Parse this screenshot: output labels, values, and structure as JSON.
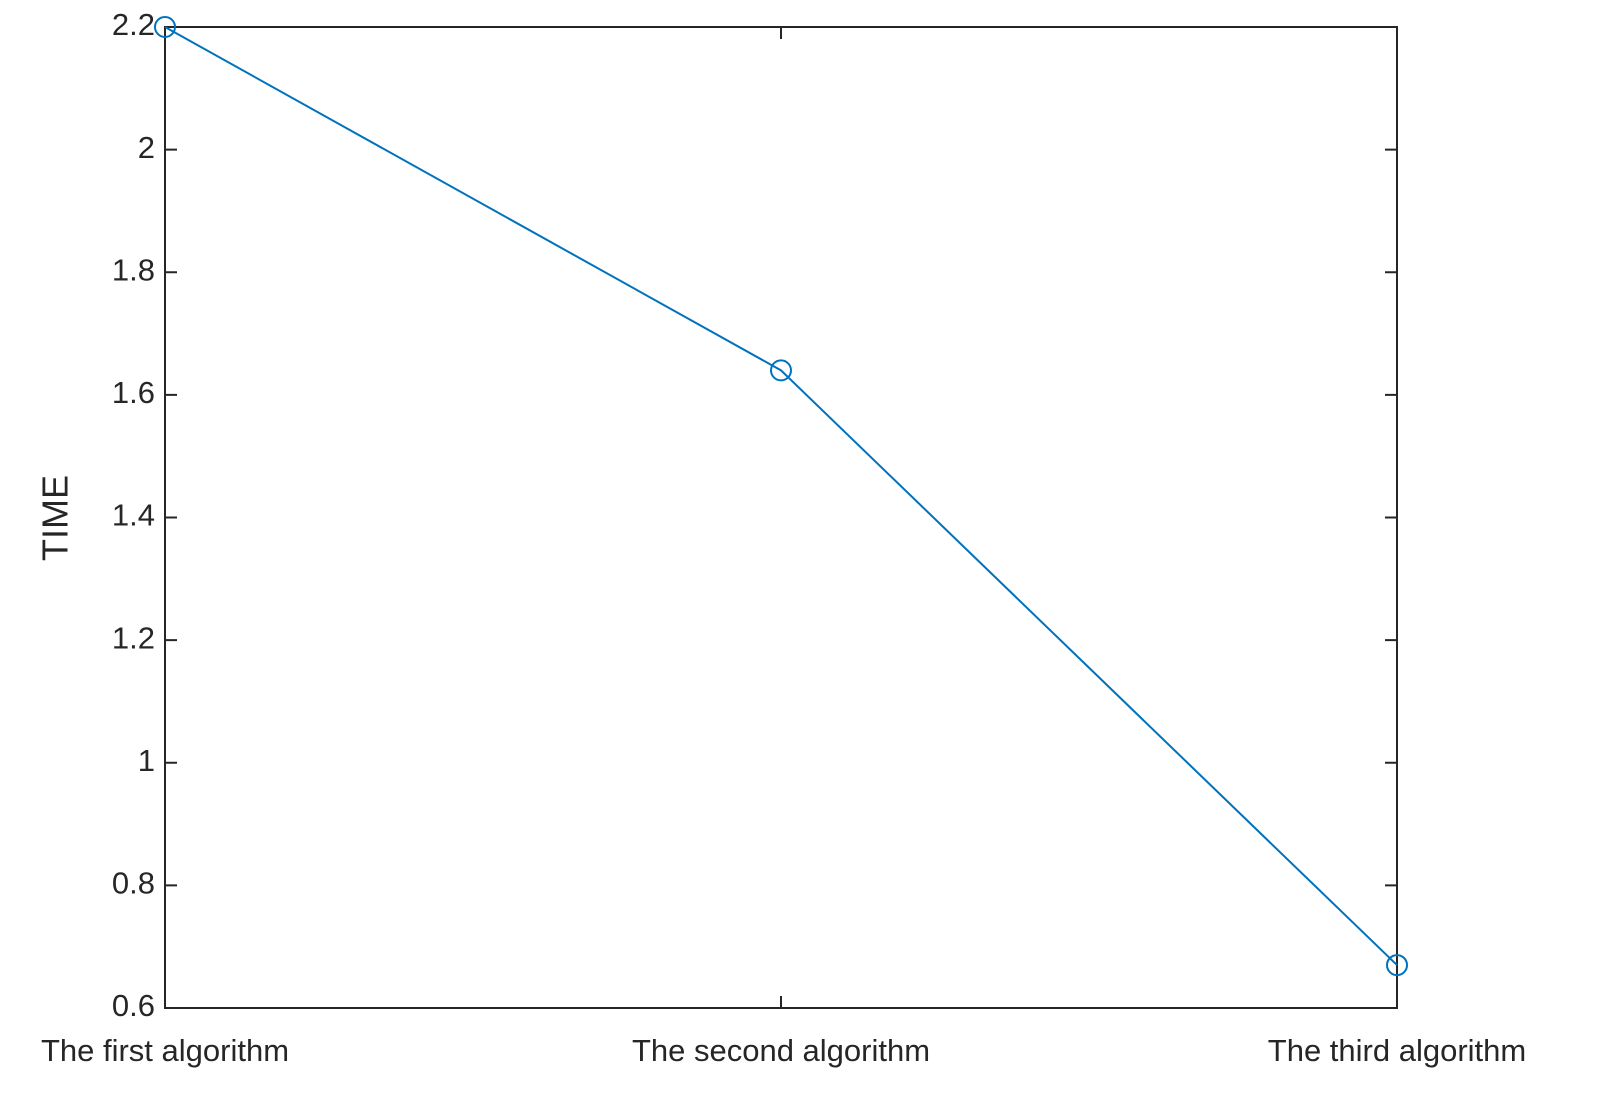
{
  "chart_data": {
    "type": "line",
    "ylabel": "TIME",
    "categories": [
      "The first algorithm",
      "The second algorithm",
      "The third algorithm"
    ],
    "values": [
      2.2,
      1.64,
      0.67
    ],
    "color": "#0072bd",
    "marker": "circle",
    "ylim": [
      0.6,
      2.2
    ],
    "yticks": [
      0.6,
      0.8,
      1,
      1.2,
      1.4,
      1.6,
      1.8,
      2,
      2.2
    ],
    "grid": false
  }
}
